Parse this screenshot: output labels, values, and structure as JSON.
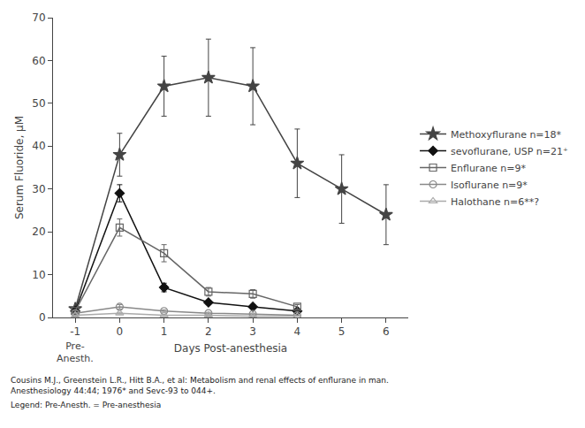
{
  "chart_data": {
    "type": "line",
    "ylabel": "Serum Fluoride, μM",
    "xlabel": "Days Post-anesthesia",
    "xlim": [
      -1.5,
      6.5
    ],
    "xticks": [
      -1,
      0,
      1,
      2,
      3,
      4,
      5,
      6
    ],
    "ylim": [
      0,
      70
    ],
    "yticks": [
      0,
      10,
      20,
      30,
      40,
      50,
      60,
      70
    ],
    "grid": false,
    "legend": "right",
    "annotations": [
      {
        "text": "Pre-\nAnesth.",
        "x": -1
      },
      {
        "text": "Cousins M.J., Greenstein L.R., Hitt B.A., et al: Metabolism and renal effects of enflurane in man. Anesthesiology 44:44; 1976* and Sevc-93 to 044+."
      },
      {
        "text": "Legend: Pre-Anesth. = Pre-anesthesia"
      }
    ],
    "series": [
      {
        "name": "Methoxyflurane n=18*",
        "color": "#444444",
        "marker": "star",
        "line_style": "solid",
        "x": [
          -1,
          0,
          1,
          2,
          3,
          4,
          5,
          6
        ],
        "values": [
          2,
          38,
          54,
          56,
          54,
          36,
          30,
          24
        ],
        "yerr": [
          0,
          5,
          7,
          9,
          9,
          8,
          8,
          7
        ]
      },
      {
        "name": "sevoflurane, USP n=21⁺",
        "color": "#111111",
        "marker": "diamond",
        "line_style": "solid",
        "x": [
          -1,
          0,
          1,
          2,
          3,
          4
        ],
        "values": [
          1.5,
          29,
          7,
          3.5,
          2.5,
          1.5
        ],
        "yerr": [
          0,
          2,
          1,
          0.5,
          0.5,
          0.3
        ]
      },
      {
        "name": "Enflurane n=9*",
        "color": "#666666",
        "marker": "square-open",
        "line_style": "solid",
        "x": [
          -1,
          0,
          1,
          2,
          3,
          4
        ],
        "values": [
          1.5,
          21,
          15,
          6,
          5.5,
          2.5
        ],
        "yerr": [
          0,
          2,
          2,
          1,
          1,
          0.5
        ]
      },
      {
        "name": "Isoflurane n=9*",
        "color": "#888888",
        "marker": "circle-open",
        "line_style": "solid",
        "x": [
          -1,
          0,
          1,
          2,
          3,
          4
        ],
        "values": [
          1.0,
          2.5,
          1.5,
          1.0,
          0.8,
          0.5
        ],
        "yerr": [
          0,
          0.5,
          0.3,
          0.2,
          0.2,
          0.1
        ]
      },
      {
        "name": "Halothane n=6**?",
        "color": "#aaaaaa",
        "marker": "triangle-up-open",
        "line_style": "solid",
        "x": [
          -1,
          0,
          1,
          2,
          3,
          4
        ],
        "values": [
          0.5,
          1.0,
          0.5,
          0.5,
          0.3,
          0.3
        ],
        "yerr": [
          0,
          0.2,
          0.1,
          0.1,
          0.05,
          0.05
        ]
      }
    ]
  }
}
